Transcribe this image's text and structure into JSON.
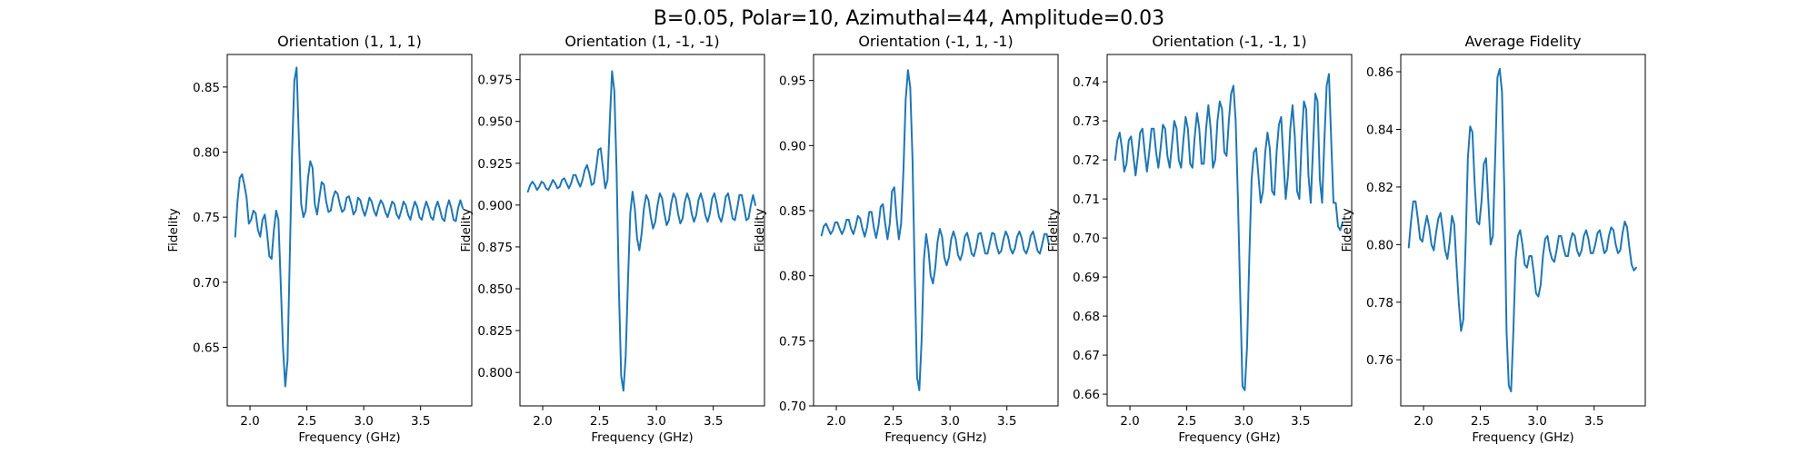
{
  "figure": {
    "suptitle": "B=0.05, Polar=10, Azimuthal=44, Amplitude=0.03",
    "line_color": "#1f77b4"
  },
  "chart_data": [
    {
      "type": "line",
      "title": "Orientation (1, 1, 1)",
      "xlabel": "Frequency (GHz)",
      "ylabel": "Fidelity",
      "xlim": [
        1.8,
        3.95
      ],
      "ylim": [
        0.605,
        0.875
      ],
      "xticks": [
        "2.0",
        "2.5",
        "3.0",
        "3.5"
      ],
      "yticks": [
        "0.65",
        "0.70",
        "0.75",
        "0.80",
        "0.85"
      ],
      "grid": false,
      "x": [
        1.87,
        1.89,
        1.91,
        1.93,
        1.95,
        1.97,
        1.99,
        2.01,
        2.03,
        2.05,
        2.07,
        2.09,
        2.11,
        2.13,
        2.15,
        2.17,
        2.19,
        2.21,
        2.23,
        2.25,
        2.27,
        2.29,
        2.31,
        2.33,
        2.35,
        2.37,
        2.39,
        2.41,
        2.43,
        2.45,
        2.47,
        2.49,
        2.51,
        2.53,
        2.55,
        2.57,
        2.59,
        2.61,
        2.63,
        2.65,
        2.67,
        2.69,
        2.71,
        2.73,
        2.75,
        2.77,
        2.79,
        2.81,
        2.83,
        2.85,
        2.87,
        2.89,
        2.91,
        2.93,
        2.95,
        2.97,
        2.99,
        3.01,
        3.03,
        3.05,
        3.07,
        3.09,
        3.11,
        3.13,
        3.15,
        3.17,
        3.19,
        3.21,
        3.23,
        3.25,
        3.27,
        3.29,
        3.31,
        3.33,
        3.35,
        3.37,
        3.39,
        3.41,
        3.43,
        3.45,
        3.47,
        3.49,
        3.51,
        3.53,
        3.55,
        3.57,
        3.59,
        3.61,
        3.63,
        3.65,
        3.67,
        3.69,
        3.71,
        3.73,
        3.75,
        3.77,
        3.79,
        3.81,
        3.83,
        3.85,
        3.87
      ],
      "series": [
        {
          "values": [
            0.735,
            0.762,
            0.78,
            0.783,
            0.775,
            0.765,
            0.745,
            0.748,
            0.755,
            0.753,
            0.74,
            0.735,
            0.748,
            0.752,
            0.738,
            0.72,
            0.718,
            0.74,
            0.755,
            0.748,
            0.7,
            0.65,
            0.62,
            0.64,
            0.72,
            0.8,
            0.855,
            0.865,
            0.81,
            0.76,
            0.75,
            0.755,
            0.78,
            0.793,
            0.788,
            0.76,
            0.752,
            0.765,
            0.777,
            0.775,
            0.762,
            0.754,
            0.755,
            0.765,
            0.77,
            0.768,
            0.76,
            0.754,
            0.756,
            0.765,
            0.766,
            0.76,
            0.752,
            0.755,
            0.765,
            0.763,
            0.756,
            0.751,
            0.757,
            0.765,
            0.762,
            0.755,
            0.751,
            0.758,
            0.763,
            0.76,
            0.754,
            0.75,
            0.756,
            0.762,
            0.76,
            0.752,
            0.749,
            0.755,
            0.762,
            0.759,
            0.752,
            0.748,
            0.756,
            0.762,
            0.758,
            0.75,
            0.748,
            0.756,
            0.762,
            0.757,
            0.75,
            0.748,
            0.757,
            0.762,
            0.756,
            0.749,
            0.747,
            0.757,
            0.763,
            0.757,
            0.748,
            0.747,
            0.757,
            0.763,
            0.757
          ]
        }
      ]
    },
    {
      "type": "line",
      "title": "Orientation (1, -1, -1)",
      "xlabel": "Frequency (GHz)",
      "ylabel": "Fidelity",
      "xlim": [
        1.8,
        3.95
      ],
      "ylim": [
        0.78,
        0.99
      ],
      "xticks": [
        "2.0",
        "2.5",
        "3.0",
        "3.5"
      ],
      "yticks": [
        "0.800",
        "0.825",
        "0.850",
        "0.875",
        "0.900",
        "0.925",
        "0.950",
        "0.975"
      ],
      "grid": false,
      "x": [
        1.87,
        1.89,
        1.91,
        1.93,
        1.95,
        1.97,
        1.99,
        2.01,
        2.03,
        2.05,
        2.07,
        2.09,
        2.11,
        2.13,
        2.15,
        2.17,
        2.19,
        2.21,
        2.23,
        2.25,
        2.27,
        2.29,
        2.31,
        2.33,
        2.35,
        2.37,
        2.39,
        2.41,
        2.43,
        2.45,
        2.47,
        2.49,
        2.51,
        2.53,
        2.55,
        2.57,
        2.59,
        2.61,
        2.63,
        2.65,
        2.67,
        2.69,
        2.71,
        2.73,
        2.75,
        2.77,
        2.79,
        2.81,
        2.83,
        2.85,
        2.87,
        2.89,
        2.91,
        2.93,
        2.95,
        2.97,
        2.99,
        3.01,
        3.03,
        3.05,
        3.07,
        3.09,
        3.11,
        3.13,
        3.15,
        3.17,
        3.19,
        3.21,
        3.23,
        3.25,
        3.27,
        3.29,
        3.31,
        3.33,
        3.35,
        3.37,
        3.39,
        3.41,
        3.43,
        3.45,
        3.47,
        3.49,
        3.51,
        3.53,
        3.55,
        3.57,
        3.59,
        3.61,
        3.63,
        3.65,
        3.67,
        3.69,
        3.71,
        3.73,
        3.75,
        3.77,
        3.79,
        3.81,
        3.83,
        3.85,
        3.87
      ],
      "series": [
        {
          "values": [
            0.908,
            0.912,
            0.914,
            0.912,
            0.909,
            0.911,
            0.914,
            0.913,
            0.91,
            0.909,
            0.912,
            0.915,
            0.913,
            0.91,
            0.911,
            0.915,
            0.916,
            0.913,
            0.91,
            0.913,
            0.918,
            0.918,
            0.914,
            0.911,
            0.915,
            0.921,
            0.924,
            0.919,
            0.912,
            0.913,
            0.922,
            0.933,
            0.934,
            0.922,
            0.91,
            0.915,
            0.95,
            0.98,
            0.968,
            0.92,
            0.85,
            0.798,
            0.789,
            0.81,
            0.855,
            0.895,
            0.908,
            0.898,
            0.88,
            0.873,
            0.883,
            0.898,
            0.906,
            0.903,
            0.893,
            0.886,
            0.89,
            0.9,
            0.907,
            0.904,
            0.895,
            0.888,
            0.891,
            0.901,
            0.907,
            0.904,
            0.895,
            0.889,
            0.892,
            0.902,
            0.907,
            0.903,
            0.895,
            0.89,
            0.894,
            0.903,
            0.907,
            0.902,
            0.894,
            0.89,
            0.895,
            0.904,
            0.907,
            0.901,
            0.893,
            0.89,
            0.896,
            0.905,
            0.907,
            0.9,
            0.892,
            0.891,
            0.898,
            0.906,
            0.906,
            0.899,
            0.891,
            0.892,
            0.9,
            0.906,
            0.9
          ]
        }
      ]
    },
    {
      "type": "line",
      "title": "Orientation (-1, 1, -1)",
      "xlabel": "Frequency (GHz)",
      "ylabel": "Fidelity",
      "xlim": [
        1.8,
        3.95
      ],
      "ylim": [
        0.7,
        0.97
      ],
      "xticks": [
        "2.0",
        "2.5",
        "3.0",
        "3.5"
      ],
      "yticks": [
        "0.70",
        "0.75",
        "0.80",
        "0.85",
        "0.90",
        "0.95"
      ],
      "grid": false,
      "x": [
        1.87,
        1.89,
        1.91,
        1.93,
        1.95,
        1.97,
        1.99,
        2.01,
        2.03,
        2.05,
        2.07,
        2.09,
        2.11,
        2.13,
        2.15,
        2.17,
        2.19,
        2.21,
        2.23,
        2.25,
        2.27,
        2.29,
        2.31,
        2.33,
        2.35,
        2.37,
        2.39,
        2.41,
        2.43,
        2.45,
        2.47,
        2.49,
        2.51,
        2.53,
        2.55,
        2.57,
        2.59,
        2.61,
        2.63,
        2.65,
        2.67,
        2.69,
        2.71,
        2.73,
        2.75,
        2.77,
        2.79,
        2.81,
        2.83,
        2.85,
        2.87,
        2.89,
        2.91,
        2.93,
        2.95,
        2.97,
        2.99,
        3.01,
        3.03,
        3.05,
        3.07,
        3.09,
        3.11,
        3.13,
        3.15,
        3.17,
        3.19,
        3.21,
        3.23,
        3.25,
        3.27,
        3.29,
        3.31,
        3.33,
        3.35,
        3.37,
        3.39,
        3.41,
        3.43,
        3.45,
        3.47,
        3.49,
        3.51,
        3.53,
        3.55,
        3.57,
        3.59,
        3.61,
        3.63,
        3.65,
        3.67,
        3.69,
        3.71,
        3.73,
        3.75,
        3.77,
        3.79,
        3.81,
        3.83,
        3.85,
        3.87
      ],
      "series": [
        {
          "values": [
            0.831,
            0.838,
            0.84,
            0.836,
            0.832,
            0.835,
            0.841,
            0.841,
            0.836,
            0.832,
            0.836,
            0.843,
            0.843,
            0.836,
            0.832,
            0.838,
            0.846,
            0.844,
            0.836,
            0.83,
            0.837,
            0.849,
            0.849,
            0.837,
            0.829,
            0.838,
            0.853,
            0.855,
            0.84,
            0.828,
            0.84,
            0.865,
            0.868,
            0.845,
            0.828,
            0.84,
            0.88,
            0.935,
            0.958,
            0.945,
            0.89,
            0.8,
            0.722,
            0.712,
            0.75,
            0.812,
            0.832,
            0.82,
            0.8,
            0.794,
            0.806,
            0.826,
            0.836,
            0.83,
            0.814,
            0.808,
            0.814,
            0.828,
            0.834,
            0.828,
            0.816,
            0.812,
            0.818,
            0.83,
            0.833,
            0.826,
            0.817,
            0.815,
            0.822,
            0.832,
            0.833,
            0.825,
            0.817,
            0.817,
            0.825,
            0.833,
            0.832,
            0.823,
            0.817,
            0.819,
            0.828,
            0.834,
            0.83,
            0.821,
            0.817,
            0.821,
            0.83,
            0.834,
            0.829,
            0.82,
            0.817,
            0.822,
            0.831,
            0.834,
            0.827,
            0.819,
            0.817,
            0.824,
            0.832,
            0.832,
            0.824
          ]
        }
      ]
    },
    {
      "type": "line",
      "title": "Orientation (-1, -1, 1)",
      "xlabel": "Frequency (GHz)",
      "ylabel": "Fidelity",
      "xlim": [
        1.8,
        3.95
      ],
      "ylim": [
        0.657,
        0.747
      ],
      "xticks": [
        "2.0",
        "2.5",
        "3.0",
        "3.5"
      ],
      "yticks": [
        "0.66",
        "0.67",
        "0.68",
        "0.69",
        "0.70",
        "0.71",
        "0.72",
        "0.73",
        "0.74"
      ],
      "grid": false,
      "x": [
        1.87,
        1.89,
        1.91,
        1.93,
        1.95,
        1.97,
        1.99,
        2.01,
        2.03,
        2.05,
        2.07,
        2.09,
        2.11,
        2.13,
        2.15,
        2.17,
        2.19,
        2.21,
        2.23,
        2.25,
        2.27,
        2.29,
        2.31,
        2.33,
        2.35,
        2.37,
        2.39,
        2.41,
        2.43,
        2.45,
        2.47,
        2.49,
        2.51,
        2.53,
        2.55,
        2.57,
        2.59,
        2.61,
        2.63,
        2.65,
        2.67,
        2.69,
        2.71,
        2.73,
        2.75,
        2.77,
        2.79,
        2.81,
        2.83,
        2.85,
        2.87,
        2.89,
        2.91,
        2.93,
        2.95,
        2.97,
        2.99,
        3.01,
        3.03,
        3.05,
        3.07,
        3.09,
        3.11,
        3.13,
        3.15,
        3.17,
        3.19,
        3.21,
        3.23,
        3.25,
        3.27,
        3.29,
        3.31,
        3.33,
        3.35,
        3.37,
        3.39,
        3.41,
        3.43,
        3.45,
        3.47,
        3.49,
        3.51,
        3.53,
        3.55,
        3.57,
        3.59,
        3.61,
        3.63,
        3.65,
        3.67,
        3.69,
        3.71,
        3.73,
        3.75,
        3.77,
        3.79,
        3.81,
        3.83,
        3.85,
        3.87
      ],
      "series": [
        {
          "values": [
            0.72,
            0.725,
            0.727,
            0.723,
            0.717,
            0.719,
            0.725,
            0.726,
            0.721,
            0.716,
            0.721,
            0.727,
            0.728,
            0.722,
            0.717,
            0.722,
            0.728,
            0.728,
            0.722,
            0.718,
            0.723,
            0.729,
            0.728,
            0.721,
            0.718,
            0.724,
            0.73,
            0.728,
            0.72,
            0.718,
            0.725,
            0.731,
            0.728,
            0.719,
            0.718,
            0.726,
            0.732,
            0.728,
            0.719,
            0.719,
            0.728,
            0.734,
            0.728,
            0.718,
            0.72,
            0.73,
            0.735,
            0.733,
            0.722,
            0.721,
            0.73,
            0.737,
            0.739,
            0.73,
            0.71,
            0.685,
            0.662,
            0.661,
            0.672,
            0.695,
            0.715,
            0.722,
            0.723,
            0.716,
            0.709,
            0.712,
            0.722,
            0.727,
            0.723,
            0.712,
            0.711,
            0.722,
            0.729,
            0.731,
            0.72,
            0.71,
            0.716,
            0.728,
            0.734,
            0.726,
            0.712,
            0.71,
            0.725,
            0.735,
            0.733,
            0.716,
            0.709,
            0.723,
            0.737,
            0.735,
            0.715,
            0.709,
            0.725,
            0.739,
            0.742,
            0.725,
            0.709,
            0.709,
            0.703,
            0.702,
            0.704
          ]
        }
      ]
    },
    {
      "type": "line",
      "title": "Average Fidelity",
      "xlabel": "Frequency (GHz)",
      "ylabel": "Fidelity",
      "xlim": [
        1.8,
        3.95
      ],
      "ylim": [
        0.744,
        0.866
      ],
      "xticks": [
        "2.0",
        "2.5",
        "3.0",
        "3.5"
      ],
      "yticks": [
        "0.76",
        "0.78",
        "0.80",
        "0.82",
        "0.84",
        "0.86"
      ],
      "grid": false,
      "x": [
        1.87,
        1.89,
        1.91,
        1.93,
        1.95,
        1.97,
        1.99,
        2.01,
        2.03,
        2.05,
        2.07,
        2.09,
        2.11,
        2.13,
        2.15,
        2.17,
        2.19,
        2.21,
        2.23,
        2.25,
        2.27,
        2.29,
        2.31,
        2.33,
        2.35,
        2.37,
        2.39,
        2.41,
        2.43,
        2.45,
        2.47,
        2.49,
        2.51,
        2.53,
        2.55,
        2.57,
        2.59,
        2.61,
        2.63,
        2.65,
        2.67,
        2.69,
        2.71,
        2.73,
        2.75,
        2.77,
        2.79,
        2.81,
        2.83,
        2.85,
        2.87,
        2.89,
        2.91,
        2.93,
        2.95,
        2.97,
        2.99,
        3.01,
        3.03,
        3.05,
        3.07,
        3.09,
        3.11,
        3.13,
        3.15,
        3.17,
        3.19,
        3.21,
        3.23,
        3.25,
        3.27,
        3.29,
        3.31,
        3.33,
        3.35,
        3.37,
        3.39,
        3.41,
        3.43,
        3.45,
        3.47,
        3.49,
        3.51,
        3.53,
        3.55,
        3.57,
        3.59,
        3.61,
        3.63,
        3.65,
        3.67,
        3.69,
        3.71,
        3.73,
        3.75,
        3.77,
        3.79,
        3.81,
        3.83,
        3.85,
        3.87
      ],
      "series": [
        {
          "values": [
            0.799,
            0.808,
            0.815,
            0.815,
            0.809,
            0.802,
            0.801,
            0.806,
            0.81,
            0.806,
            0.8,
            0.798,
            0.804,
            0.809,
            0.811,
            0.805,
            0.798,
            0.795,
            0.801,
            0.81,
            0.807,
            0.793,
            0.78,
            0.77,
            0.774,
            0.8,
            0.83,
            0.841,
            0.839,
            0.821,
            0.808,
            0.807,
            0.815,
            0.828,
            0.83,
            0.815,
            0.8,
            0.803,
            0.83,
            0.858,
            0.861,
            0.853,
            0.82,
            0.77,
            0.751,
            0.749,
            0.77,
            0.795,
            0.803,
            0.805,
            0.8,
            0.793,
            0.792,
            0.796,
            0.796,
            0.79,
            0.783,
            0.782,
            0.786,
            0.796,
            0.802,
            0.803,
            0.798,
            0.795,
            0.794,
            0.798,
            0.803,
            0.803,
            0.799,
            0.796,
            0.796,
            0.801,
            0.804,
            0.803,
            0.798,
            0.796,
            0.798,
            0.803,
            0.805,
            0.802,
            0.797,
            0.797,
            0.8,
            0.804,
            0.805,
            0.801,
            0.797,
            0.798,
            0.803,
            0.806,
            0.805,
            0.8,
            0.797,
            0.798,
            0.804,
            0.808,
            0.806,
            0.799,
            0.793,
            0.791,
            0.792
          ]
        }
      ]
    }
  ]
}
